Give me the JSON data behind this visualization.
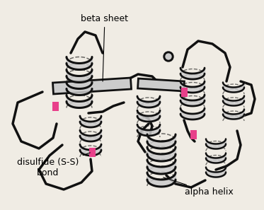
{
  "background_color": "#f0ece4",
  "text_color": "#000000",
  "label_fontsize": 9,
  "labels": {
    "beta_sheet": "beta sheet",
    "disulfide": "disulfide (S-S)\nbond",
    "alpha_helix": "alpha helix"
  },
  "disulfide_color": "#e8408a",
  "outline_color": "#111111",
  "ribbon_fill": "#cccccc",
  "ribbon_lw": 2.2,
  "loop_lw": 2.5,
  "figsize": [
    3.73,
    2.97
  ],
  "dpi": 100
}
